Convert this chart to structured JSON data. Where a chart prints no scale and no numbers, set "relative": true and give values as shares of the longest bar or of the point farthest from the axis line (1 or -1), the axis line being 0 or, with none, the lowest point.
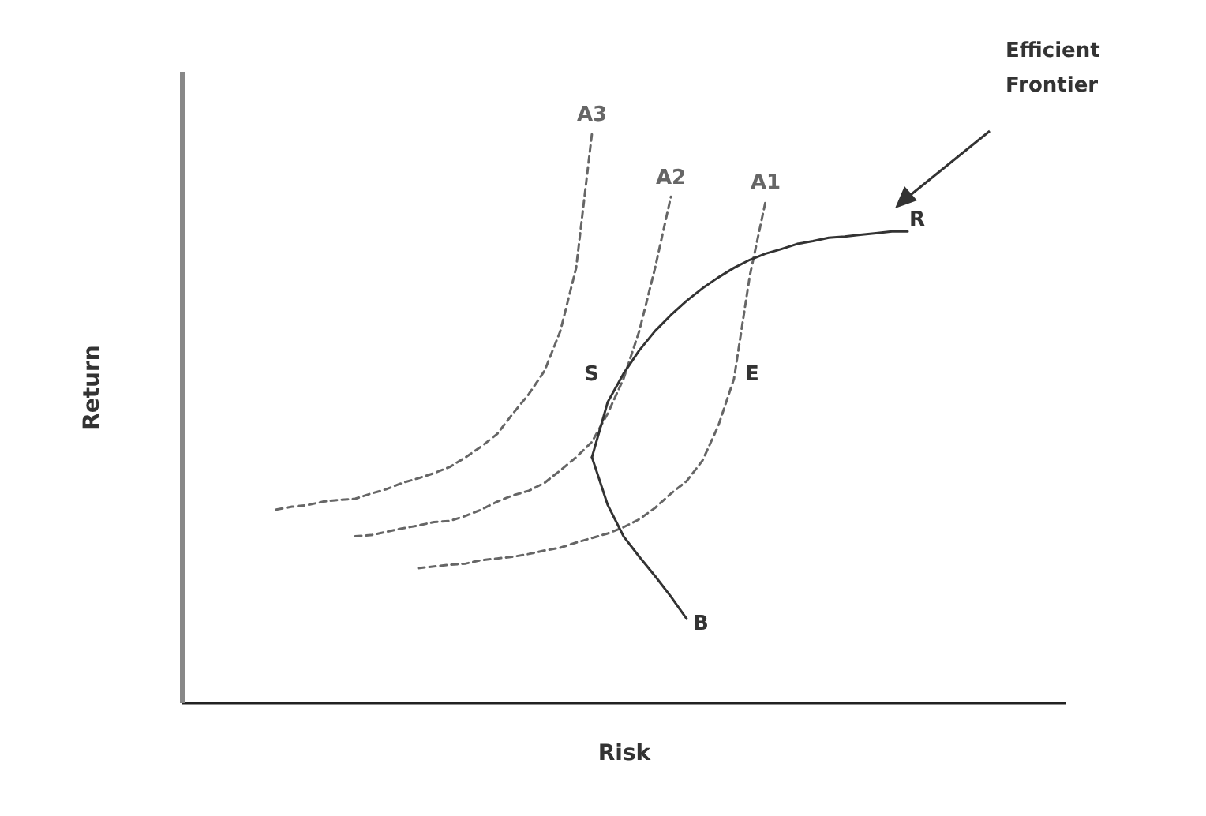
{
  "chart_data": {
    "type": "line",
    "relative": true,
    "xlabel": "Risk",
    "ylabel": "Return",
    "categories": [
      null,
      null,
      null,
      null,
      null,
      null,
      null,
      null,
      null,
      null,
      null,
      null,
      null,
      null,
      null,
      null,
      null,
      null,
      null,
      null,
      null,
      null,
      null,
      null,
      null,
      null,
      null,
      null,
      null,
      null,
      null,
      null,
      null,
      null,
      null,
      null,
      null,
      null,
      null,
      null,
      null,
      null,
      null,
      null,
      null,
      null,
      null,
      null,
      null,
      null,
      null,
      null,
      null,
      null,
      null,
      null,
      null
    ],
    "series": [
      {
        "name": "A3",
        "color": "#666666",
        "line_style": "dashed",
        "values": [
          null,
          null,
          null,
          null,
          null,
          null,
          0.339,
          0.344,
          0.347,
          0.353,
          0.356,
          0.358,
          0.367,
          0.375,
          0.386,
          0.394,
          0.403,
          0.414,
          0.431,
          0.45,
          0.472,
          0.508,
          0.542,
          0.583,
          0.653,
          0.764,
          1,
          null,
          null,
          null,
          null,
          null,
          null,
          null,
          null,
          null,
          null,
          null,
          null,
          null,
          null,
          null,
          null,
          null,
          null,
          null,
          null,
          null,
          null,
          null,
          null,
          null,
          null,
          null,
          null,
          null,
          null
        ]
      },
      {
        "name": "A2",
        "color": "#666666",
        "line_style": "dashed",
        "values": [
          null,
          null,
          null,
          null,
          null,
          null,
          null,
          null,
          null,
          null,
          null,
          0.292,
          0.294,
          0.3,
          0.306,
          0.311,
          0.317,
          0.319,
          0.328,
          0.339,
          0.353,
          0.364,
          0.372,
          0.386,
          0.408,
          0.431,
          0.458,
          0.508,
          0.569,
          0.653,
          0.764,
          0.889,
          null,
          null,
          null,
          null,
          null,
          null,
          null,
          null,
          null,
          null,
          null,
          null,
          null,
          null,
          null,
          null,
          null,
          null,
          null,
          null,
          null,
          null,
          null,
          null,
          null
        ]
      },
      {
        "name": "A1",
        "color": "#666666",
        "line_style": "dashed",
        "values": [
          null,
          null,
          null,
          null,
          null,
          null,
          null,
          null,
          null,
          null,
          null,
          null,
          null,
          null,
          null,
          0.236,
          0.239,
          0.242,
          0.244,
          0.25,
          0.253,
          0.256,
          0.261,
          0.267,
          0.272,
          0.281,
          0.289,
          0.297,
          0.308,
          0.322,
          0.342,
          0.367,
          0.389,
          0.425,
          0.486,
          0.569,
          0.75,
          0.881,
          null,
          null,
          null,
          null,
          null,
          null,
          null,
          null,
          null,
          null,
          null,
          null,
          null,
          null,
          null,
          null,
          null,
          null,
          null
        ]
      },
      {
        "color": "#333333",
        "line_style": "solid",
        "values": [
          null,
          null,
          null,
          null,
          null,
          null,
          null,
          null,
          null,
          null,
          null,
          null,
          null,
          null,
          null,
          null,
          null,
          null,
          null,
          null,
          null,
          null,
          null,
          null,
          null,
          null,
          0.431,
          0.347,
          0.292,
          0.256,
          0.222,
          0.186,
          0.147,
          null,
          null,
          null,
          null,
          null,
          null,
          null,
          null,
          null,
          null,
          null,
          null,
          null,
          null,
          null,
          null,
          null,
          null,
          null,
          null,
          null,
          null,
          null,
          null
        ]
      },
      {
        "color": "#333333",
        "line_style": "solid",
        "values": [
          null,
          null,
          null,
          null,
          null,
          null,
          null,
          null,
          null,
          null,
          null,
          null,
          null,
          null,
          null,
          null,
          null,
          null,
          null,
          null,
          null,
          null,
          null,
          null,
          null,
          null,
          0.431,
          0.528,
          0.578,
          0.619,
          0.653,
          0.681,
          0.706,
          0.728,
          0.747,
          0.764,
          0.778,
          0.789,
          0.797,
          0.806,
          0.811,
          0.817,
          0.819,
          0.822,
          0.825,
          0.828,
          0.828,
          null,
          null,
          null,
          null,
          null,
          null,
          null,
          null,
          null,
          null
        ]
      }
    ],
    "annotations": [
      "S",
      "E",
      "R",
      "B",
      "Efficient Frontier"
    ]
  }
}
